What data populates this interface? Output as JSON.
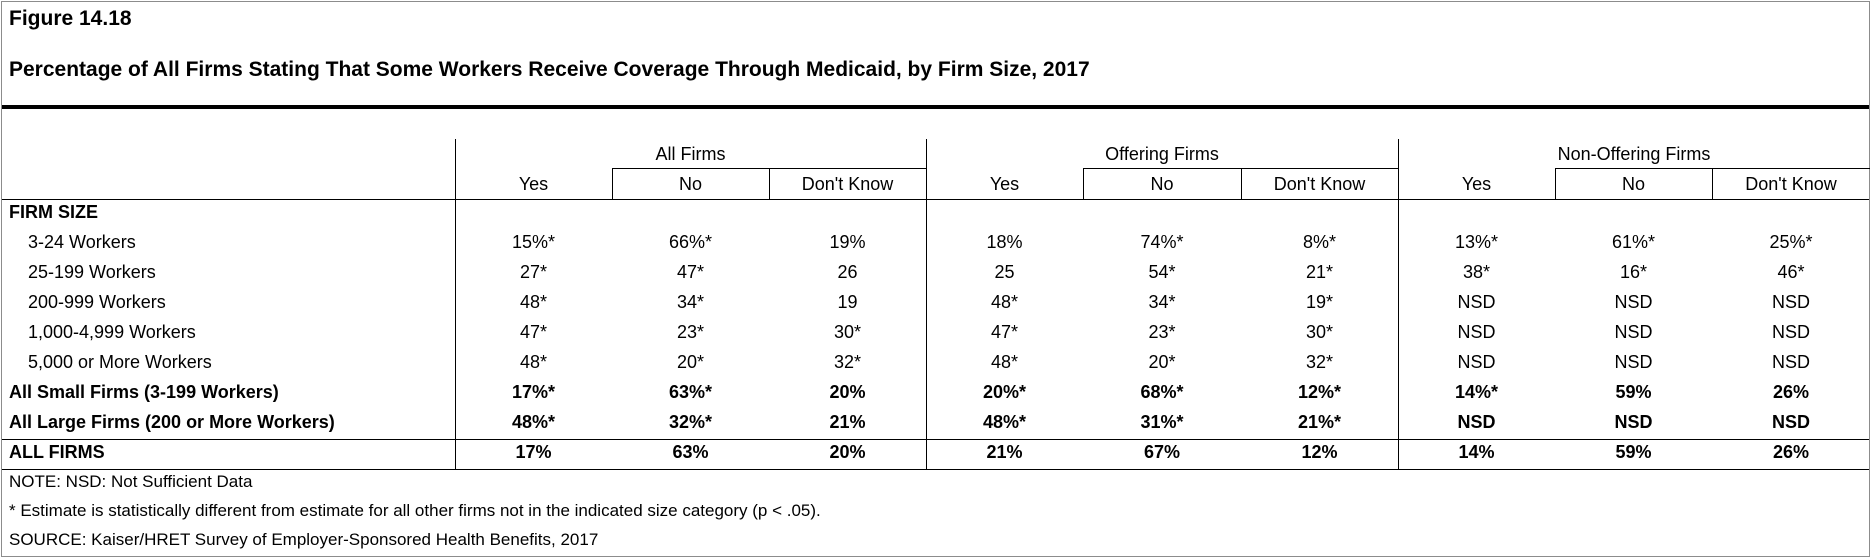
{
  "figure_label": "Figure 14.18",
  "title": "Percentage of All Firms Stating That Some Workers Receive Coverage Through Medicaid, by Firm Size, 2017",
  "groups": [
    "All Firms",
    "Offering Firms",
    "Non-Offering Firms"
  ],
  "column_headers": [
    "Yes",
    "No",
    "Don't Know",
    "Yes",
    "No",
    "Don't Know",
    "Yes",
    "No",
    "Don't Know"
  ],
  "section_label": "FIRM SIZE",
  "rows": [
    {
      "label": "3-24 Workers",
      "values": [
        "15%*",
        "66%*",
        "19%",
        "18%",
        "74%*",
        "8%*",
        "13%*",
        "61%*",
        "25%*"
      ]
    },
    {
      "label": "25-199 Workers",
      "values": [
        "27*",
        "47*",
        "26",
        "25",
        "54*",
        "21*",
        "38*",
        "16*",
        "46*"
      ]
    },
    {
      "label": "200-999 Workers",
      "values": [
        "48*",
        "34*",
        "19",
        "48*",
        "34*",
        "19*",
        "NSD",
        "NSD",
        "NSD"
      ]
    },
    {
      "label": "1,000-4,999 Workers",
      "values": [
        "47*",
        "23*",
        "30*",
        "47*",
        "23*",
        "30*",
        "NSD",
        "NSD",
        "NSD"
      ]
    },
    {
      "label": "5,000 or More Workers",
      "values": [
        "48*",
        "20*",
        "32*",
        "48*",
        "20*",
        "32*",
        "NSD",
        "NSD",
        "NSD"
      ]
    },
    {
      "label": "All Small Firms (3-199 Workers)",
      "values": [
        "17%*",
        "63%*",
        "20%",
        "20%*",
        "68%*",
        "12%*",
        "14%*",
        "59%",
        "26%"
      ]
    },
    {
      "label": "All Large Firms (200 or More Workers)",
      "values": [
        "48%*",
        "32%*",
        "21%",
        "48%*",
        "31%*",
        "21%*",
        "NSD",
        "NSD",
        "NSD"
      ]
    },
    {
      "label": "ALL FIRMS",
      "values": [
        "17%",
        "63%",
        "20%",
        "21%",
        "67%",
        "12%",
        "14%",
        "59%",
        "26%"
      ]
    }
  ],
  "notes": [
    "NOTE: NSD: Not Sufficient Data",
    "* Estimate is statistically different from estimate for all other firms not in the indicated size category (p < .05).",
    "SOURCE: Kaiser/HRET Survey of Employer-Sponsored Health Benefits, 2017"
  ]
}
